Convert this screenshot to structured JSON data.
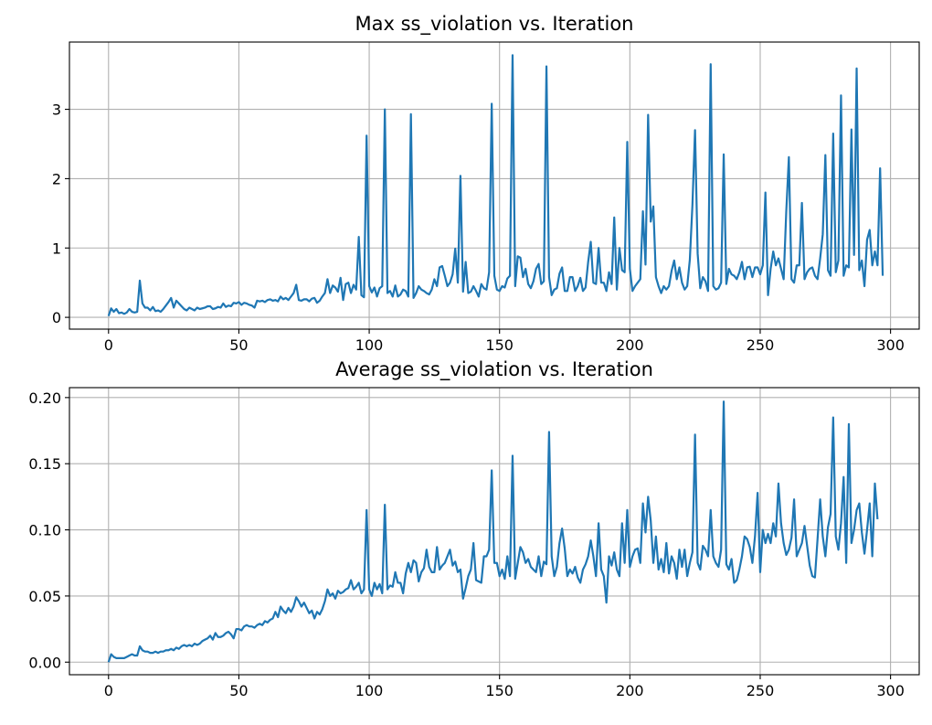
{
  "chart_data": [
    {
      "type": "line",
      "title": "Max ss_violation vs. Iteration",
      "xlabel": "",
      "ylabel": "",
      "xlim": [
        -15,
        311
      ],
      "ylim": [
        -0.17,
        3.97
      ],
      "xticks": [
        0,
        50,
        100,
        150,
        200,
        250,
        300
      ],
      "yticks": [
        0,
        1,
        2,
        3
      ],
      "ytick_labels": [
        "0",
        "1",
        "2",
        "3"
      ],
      "grid": true,
      "line_color": "#1f77b4",
      "series": [
        {
          "values": [
            0.02,
            0.13,
            0.08,
            0.12,
            0.06,
            0.07,
            0.05,
            0.07,
            0.12,
            0.08,
            0.07,
            0.08,
            0.53,
            0.2,
            0.14,
            0.14,
            0.1,
            0.15,
            0.09,
            0.1,
            0.08,
            0.12,
            0.17,
            0.22,
            0.28,
            0.14,
            0.24,
            0.2,
            0.16,
            0.12,
            0.1,
            0.14,
            0.12,
            0.1,
            0.14,
            0.12,
            0.13,
            0.14,
            0.16,
            0.16,
            0.12,
            0.13,
            0.15,
            0.14,
            0.2,
            0.15,
            0.17,
            0.16,
            0.21,
            0.2,
            0.22,
            0.18,
            0.21,
            0.2,
            0.18,
            0.17,
            0.14,
            0.24,
            0.23,
            0.24,
            0.22,
            0.25,
            0.26,
            0.24,
            0.25,
            0.23,
            0.3,
            0.26,
            0.28,
            0.25,
            0.3,
            0.35,
            0.47,
            0.25,
            0.24,
            0.26,
            0.26,
            0.23,
            0.27,
            0.28,
            0.21,
            0.24,
            0.3,
            0.35,
            0.55,
            0.35,
            0.46,
            0.43,
            0.37,
            0.57,
            0.25,
            0.48,
            0.5,
            0.35,
            0.47,
            0.4,
            1.16,
            0.32,
            0.29,
            2.62,
            0.45,
            0.36,
            0.43,
            0.3,
            0.42,
            0.45,
            3.0,
            0.35,
            0.38,
            0.3,
            0.46,
            0.3,
            0.33,
            0.4,
            0.38,
            0.3,
            2.93,
            0.28,
            0.35,
            0.45,
            0.4,
            0.38,
            0.35,
            0.33,
            0.4,
            0.55,
            0.45,
            0.72,
            0.74,
            0.6,
            0.45,
            0.5,
            0.62,
            0.99,
            0.5,
            2.04,
            0.37,
            0.8,
            0.35,
            0.37,
            0.45,
            0.38,
            0.3,
            0.48,
            0.42,
            0.4,
            0.65,
            3.08,
            0.6,
            0.4,
            0.38,
            0.45,
            0.43,
            0.56,
            0.6,
            3.78,
            0.45,
            0.88,
            0.86,
            0.58,
            0.7,
            0.48,
            0.42,
            0.52,
            0.7,
            0.77,
            0.48,
            0.52,
            3.62,
            0.58,
            0.32,
            0.4,
            0.42,
            0.63,
            0.72,
            0.38,
            0.38,
            0.58,
            0.58,
            0.38,
            0.45,
            0.57,
            0.38,
            0.43,
            0.8,
            1.09,
            0.5,
            0.48,
            1.0,
            0.5,
            0.5,
            0.38,
            0.65,
            0.48,
            1.44,
            0.4,
            1.0,
            0.68,
            0.65,
            2.53,
            0.7,
            0.38,
            0.45,
            0.5,
            0.55,
            1.53,
            0.76,
            2.92,
            1.38,
            1.6,
            0.58,
            0.45,
            0.35,
            0.45,
            0.4,
            0.45,
            0.67,
            0.82,
            0.55,
            0.72,
            0.5,
            0.4,
            0.45,
            0.83,
            1.62,
            2.7,
            0.92,
            0.42,
            0.58,
            0.52,
            0.38,
            3.65,
            0.45,
            0.4,
            0.42,
            0.5,
            2.35,
            0.48,
            0.7,
            0.62,
            0.6,
            0.55,
            0.65,
            0.8,
            0.55,
            0.72,
            0.73,
            0.58,
            0.72,
            0.72,
            0.62,
            0.75,
            1.8,
            0.32,
            0.7,
            0.95,
            0.75,
            0.85,
            0.7,
            0.55,
            1.53,
            2.31,
            0.55,
            0.5,
            0.75,
            0.75,
            1.65,
            0.55,
            0.65,
            0.7,
            0.72,
            0.6,
            0.55,
            0.85,
            1.2,
            2.34,
            0.68,
            0.6,
            2.65,
            0.65,
            0.82,
            3.2,
            0.6,
            0.75,
            0.72,
            2.71,
            0.9,
            3.59,
            0.68,
            0.82,
            0.45,
            1.12,
            1.26,
            0.75,
            0.95,
            0.75,
            2.15,
            0.6
          ]
        }
      ]
    },
    {
      "type": "line",
      "title": "Average ss_violation vs. Iteration",
      "xlabel": "",
      "ylabel": "",
      "xlim": [
        -15,
        311
      ],
      "ylim": [
        -0.0095,
        0.2075
      ],
      "xticks": [
        0,
        50,
        100,
        150,
        200,
        250,
        300
      ],
      "yticks": [
        0,
        0.05,
        0.1,
        0.15,
        0.2
      ],
      "ytick_labels": [
        "0.00",
        "0.05",
        "0.10",
        "0.15",
        "0.20"
      ],
      "grid": true,
      "line_color": "#1f77b4",
      "series": [
        {
          "values": [
            0.0,
            0.006,
            0.004,
            0.003,
            0.003,
            0.003,
            0.003,
            0.004,
            0.005,
            0.006,
            0.005,
            0.005,
            0.012,
            0.009,
            0.008,
            0.008,
            0.007,
            0.007,
            0.008,
            0.007,
            0.008,
            0.008,
            0.009,
            0.009,
            0.01,
            0.009,
            0.011,
            0.01,
            0.012,
            0.013,
            0.012,
            0.013,
            0.012,
            0.014,
            0.013,
            0.014,
            0.016,
            0.017,
            0.018,
            0.02,
            0.017,
            0.022,
            0.019,
            0.019,
            0.02,
            0.022,
            0.023,
            0.021,
            0.018,
            0.025,
            0.025,
            0.024,
            0.027,
            0.028,
            0.027,
            0.027,
            0.026,
            0.028,
            0.029,
            0.028,
            0.031,
            0.03,
            0.032,
            0.033,
            0.038,
            0.034,
            0.042,
            0.039,
            0.037,
            0.041,
            0.038,
            0.042,
            0.049,
            0.046,
            0.042,
            0.045,
            0.041,
            0.037,
            0.039,
            0.033,
            0.038,
            0.036,
            0.04,
            0.046,
            0.055,
            0.05,
            0.052,
            0.048,
            0.054,
            0.052,
            0.053,
            0.055,
            0.056,
            0.062,
            0.055,
            0.057,
            0.06,
            0.052,
            0.055,
            0.115,
            0.055,
            0.05,
            0.06,
            0.055,
            0.059,
            0.052,
            0.119,
            0.055,
            0.058,
            0.057,
            0.068,
            0.06,
            0.06,
            0.052,
            0.067,
            0.075,
            0.068,
            0.077,
            0.075,
            0.061,
            0.068,
            0.071,
            0.085,
            0.072,
            0.068,
            0.068,
            0.087,
            0.07,
            0.073,
            0.075,
            0.08,
            0.085,
            0.073,
            0.076,
            0.068,
            0.07,
            0.048,
            0.056,
            0.065,
            0.07,
            0.09,
            0.062,
            0.061,
            0.06,
            0.08,
            0.08,
            0.085,
            0.145,
            0.075,
            0.075,
            0.065,
            0.07,
            0.063,
            0.08,
            0.065,
            0.156,
            0.063,
            0.075,
            0.087,
            0.083,
            0.075,
            0.078,
            0.072,
            0.07,
            0.068,
            0.08,
            0.065,
            0.076,
            0.074,
            0.174,
            0.08,
            0.065,
            0.072,
            0.09,
            0.101,
            0.086,
            0.065,
            0.07,
            0.067,
            0.072,
            0.064,
            0.06,
            0.07,
            0.074,
            0.08,
            0.092,
            0.08,
            0.065,
            0.105,
            0.07,
            0.065,
            0.045,
            0.08,
            0.073,
            0.083,
            0.07,
            0.065,
            0.105,
            0.075,
            0.115,
            0.072,
            0.08,
            0.085,
            0.086,
            0.075,
            0.12,
            0.098,
            0.125,
            0.107,
            0.075,
            0.095,
            0.07,
            0.078,
            0.068,
            0.09,
            0.067,
            0.08,
            0.075,
            0.063,
            0.085,
            0.072,
            0.085,
            0.065,
            0.075,
            0.083,
            0.172,
            0.075,
            0.07,
            0.088,
            0.085,
            0.08,
            0.115,
            0.08,
            0.075,
            0.072,
            0.085,
            0.197,
            0.074,
            0.07,
            0.078,
            0.06,
            0.062,
            0.07,
            0.08,
            0.095,
            0.093,
            0.087,
            0.075,
            0.095,
            0.128,
            0.068,
            0.1,
            0.09,
            0.097,
            0.09,
            0.105,
            0.095,
            0.135,
            0.105,
            0.09,
            0.081,
            0.085,
            0.094,
            0.123,
            0.08,
            0.085,
            0.09,
            0.103,
            0.088,
            0.073,
            0.065,
            0.064,
            0.093,
            0.123,
            0.095,
            0.08,
            0.102,
            0.112,
            0.185,
            0.095,
            0.085,
            0.105,
            0.14,
            0.075,
            0.18,
            0.09,
            0.1,
            0.115,
            0.12,
            0.098,
            0.082,
            0.1,
            0.12,
            0.08,
            0.135,
            0.108
          ]
        }
      ]
    }
  ]
}
